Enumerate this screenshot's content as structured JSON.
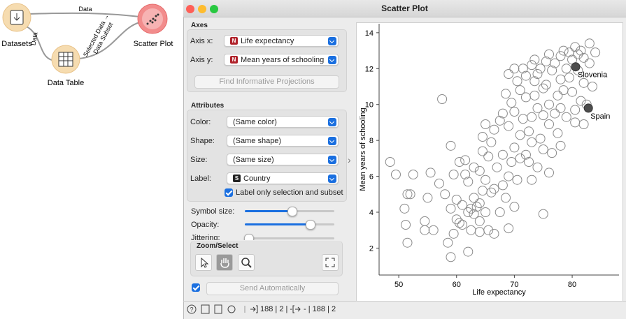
{
  "workflow": {
    "nodes": [
      {
        "label": "Datasets"
      },
      {
        "label": "Data Table"
      },
      {
        "label": "Scatter Plot"
      }
    ],
    "links": [
      {
        "label": "Data"
      },
      {
        "label": "Data"
      },
      {
        "label": "Selected Data →",
        "label2": "Data Subset"
      }
    ]
  },
  "window": {
    "title": "Scatter Plot"
  },
  "controls": {
    "axes": {
      "title": "Axes",
      "x_label": "Axis x:",
      "x_badge": "N",
      "x_value": "Life expectancy",
      "y_label": "Axis y:",
      "y_badge": "N",
      "y_value": "Mean years of schooling",
      "button": "Find Informative Projections"
    },
    "attributes": {
      "title": "Attributes",
      "rows": [
        {
          "label": "Color:",
          "value": "(Same color)"
        },
        {
          "label": "Shape:",
          "value": "(Same shape)"
        },
        {
          "label": "Size:",
          "value": "(Same size)"
        },
        {
          "label": "Label:",
          "badge": "S",
          "value": "Country"
        }
      ],
      "checkbox": "Label only selection and subset"
    },
    "sliders": [
      {
        "label": "Symbol size:"
      },
      {
        "label": "Opacity:"
      },
      {
        "label": "Jittering:"
      }
    ],
    "zoom_select": {
      "title": "Zoom/Select"
    },
    "send_button": "Send Automatically"
  },
  "status": {
    "input": "188 | 2 | -",
    "output": "- | 188 | 2"
  },
  "plot": {
    "type": "scatter",
    "x_label": "Life expectancy",
    "y_label": "Mean years of schooling",
    "xlim": [
      46.6,
      88.1
    ],
    "ylim": [
      0.5,
      14.5
    ],
    "xticks": [
      50,
      60,
      70,
      80
    ],
    "yticks": [
      2,
      4,
      6,
      8,
      10,
      12,
      14
    ],
    "points": [
      {
        "x": 48.5,
        "y": 6.8
      },
      {
        "x": 49.5,
        "y": 6.1
      },
      {
        "x": 51.5,
        "y": 5.0
      },
      {
        "x": 51,
        "y": 4.2
      },
      {
        "x": 51.2,
        "y": 3.3
      },
      {
        "x": 51.5,
        "y": 2.3
      },
      {
        "x": 52,
        "y": 5.0
      },
      {
        "x": 52.5,
        "y": 6.1
      },
      {
        "x": 54.5,
        "y": 3.5
      },
      {
        "x": 54.5,
        "y": 3.0
      },
      {
        "x": 55,
        "y": 4.8
      },
      {
        "x": 55.5,
        "y": 6.2
      },
      {
        "x": 56,
        "y": 3.0
      },
      {
        "x": 57,
        "y": 5.6
      },
      {
        "x": 57.5,
        "y": 10.3
      },
      {
        "x": 58,
        "y": 5.0
      },
      {
        "x": 58.5,
        "y": 2.3
      },
      {
        "x": 59,
        "y": 1.5
      },
      {
        "x": 59,
        "y": 4.2
      },
      {
        "x": 59,
        "y": 7.7
      },
      {
        "x": 59.5,
        "y": 6.1
      },
      {
        "x": 59.5,
        "y": 2.8
      },
      {
        "x": 60,
        "y": 3.6
      },
      {
        "x": 60,
        "y": 4.7
      },
      {
        "x": 60.5,
        "y": 3.4
      },
      {
        "x": 60.5,
        "y": 6.8
      },
      {
        "x": 61,
        "y": 3.3
      },
      {
        "x": 61,
        "y": 4.4
      },
      {
        "x": 61.5,
        "y": 6.1
      },
      {
        "x": 61.5,
        "y": 6.9
      },
      {
        "x": 62,
        "y": 1.8
      },
      {
        "x": 62,
        "y": 4.0
      },
      {
        "x": 62,
        "y": 5.7
      },
      {
        "x": 62.5,
        "y": 4.2
      },
      {
        "x": 62.5,
        "y": 3.0
      },
      {
        "x": 63,
        "y": 4.8
      },
      {
        "x": 63,
        "y": 6.5
      },
      {
        "x": 63,
        "y": 3.9
      },
      {
        "x": 63.5,
        "y": 4.3
      },
      {
        "x": 64,
        "y": 2.9
      },
      {
        "x": 64,
        "y": 3.5
      },
      {
        "x": 64,
        "y": 4.5
      },
      {
        "x": 64,
        "y": 6.3
      },
      {
        "x": 64.5,
        "y": 7.4
      },
      {
        "x": 64.5,
        "y": 5.2
      },
      {
        "x": 64.5,
        "y": 8.2
      },
      {
        "x": 65,
        "y": 8.9
      },
      {
        "x": 65,
        "y": 4.0
      },
      {
        "x": 65,
        "y": 5.8
      },
      {
        "x": 65.5,
        "y": 3.0
      },
      {
        "x": 65.5,
        "y": 7.1
      },
      {
        "x": 66,
        "y": 5.1
      },
      {
        "x": 66,
        "y": 7.9
      },
      {
        "x": 66.5,
        "y": 5.3
      },
      {
        "x": 66.5,
        "y": 8.6
      },
      {
        "x": 66.5,
        "y": 2.8
      },
      {
        "x": 67,
        "y": 6.5
      },
      {
        "x": 67.5,
        "y": 4.0
      },
      {
        "x": 67.5,
        "y": 9.1
      },
      {
        "x": 68,
        "y": 7.2
      },
      {
        "x": 68,
        "y": 5.5
      },
      {
        "x": 68,
        "y": 9.5
      },
      {
        "x": 68.5,
        "y": 4.8
      },
      {
        "x": 68.5,
        "y": 10.6
      },
      {
        "x": 69,
        "y": 6.0
      },
      {
        "x": 69,
        "y": 8.8
      },
      {
        "x": 69,
        "y": 11.7
      },
      {
        "x": 69,
        "y": 3.1
      },
      {
        "x": 69.5,
        "y": 10.1
      },
      {
        "x": 69.5,
        "y": 6.8
      },
      {
        "x": 70,
        "y": 12.0
      },
      {
        "x": 70,
        "y": 7.6
      },
      {
        "x": 70,
        "y": 9.6
      },
      {
        "x": 70,
        "y": 4.3
      },
      {
        "x": 70.5,
        "y": 11.3
      },
      {
        "x": 70.5,
        "y": 5.8
      },
      {
        "x": 71,
        "y": 10.8
      },
      {
        "x": 71,
        "y": 8.3
      },
      {
        "x": 71.5,
        "y": 12.0
      },
      {
        "x": 71.5,
        "y": 9.2
      },
      {
        "x": 72,
        "y": 7.2
      },
      {
        "x": 72,
        "y": 10.4
      },
      {
        "x": 72,
        "y": 11.6
      },
      {
        "x": 72.5,
        "y": 6.8
      },
      {
        "x": 72.5,
        "y": 8.5
      },
      {
        "x": 73,
        "y": 12.2
      },
      {
        "x": 73,
        "y": 9.3
      },
      {
        "x": 73,
        "y": 7.9
      },
      {
        "x": 73.5,
        "y": 11.3
      },
      {
        "x": 73.5,
        "y": 12.5
      },
      {
        "x": 73.5,
        "y": 10.5
      },
      {
        "x": 74,
        "y": 6.5
      },
      {
        "x": 74,
        "y": 9.8
      },
      {
        "x": 74,
        "y": 11.7
      },
      {
        "x": 74.5,
        "y": 8.1
      },
      {
        "x": 74.5,
        "y": 12.0
      },
      {
        "x": 75,
        "y": 10.9
      },
      {
        "x": 75,
        "y": 7.5
      },
      {
        "x": 75,
        "y": 9.4
      },
      {
        "x": 75.5,
        "y": 12.4
      },
      {
        "x": 75.5,
        "y": 11.1
      },
      {
        "x": 76,
        "y": 8.9
      },
      {
        "x": 76,
        "y": 10.0
      },
      {
        "x": 76,
        "y": 12.8
      },
      {
        "x": 76.5,
        "y": 7.3
      },
      {
        "x": 76.5,
        "y": 11.9
      },
      {
        "x": 77,
        "y": 9.5
      },
      {
        "x": 77,
        "y": 12.3
      },
      {
        "x": 77.5,
        "y": 10.5
      },
      {
        "x": 77.5,
        "y": 8.4
      },
      {
        "x": 78,
        "y": 11.4
      },
      {
        "x": 78,
        "y": 12.7
      },
      {
        "x": 78,
        "y": 9.8
      },
      {
        "x": 78.5,
        "y": 13.0
      },
      {
        "x": 78.5,
        "y": 10.8
      },
      {
        "x": 79,
        "y": 12.0
      },
      {
        "x": 79,
        "y": 9.3
      },
      {
        "x": 79.5,
        "y": 11.5
      },
      {
        "x": 79.5,
        "y": 12.9
      },
      {
        "x": 80,
        "y": 10.7
      },
      {
        "x": 80,
        "y": 12.5
      },
      {
        "x": 80.5,
        "y": 13.2
      },
      {
        "x": 80.5,
        "y": 9.7
      },
      {
        "x": 81,
        "y": 11.9
      },
      {
        "x": 81,
        "y": 12.8
      },
      {
        "x": 81.5,
        "y": 10.2
      },
      {
        "x": 81.5,
        "y": 13.0
      },
      {
        "x": 82,
        "y": 11.2
      },
      {
        "x": 82,
        "y": 12.6
      },
      {
        "x": 82.5,
        "y": 10.0
      },
      {
        "x": 83,
        "y": 12.3
      },
      {
        "x": 83,
        "y": 13.4
      },
      {
        "x": 83.5,
        "y": 11.0
      },
      {
        "x": 84,
        "y": 12.9
      },
      {
        "x": 75,
        "y": 3.9
      },
      {
        "x": 76,
        "y": 6.2
      },
      {
        "x": 73,
        "y": 5.8
      },
      {
        "x": 71,
        "y": 7.0
      },
      {
        "x": 78,
        "y": 7.7
      },
      {
        "x": 80.5,
        "y": 9.0
      },
      {
        "x": 82,
        "y": 8.9
      }
    ],
    "highlighted": [
      {
        "label": "Slovenia",
        "x": 80.6,
        "y": 12.1
      },
      {
        "label": "Spain",
        "x": 82.8,
        "y": 9.8
      }
    ]
  }
}
